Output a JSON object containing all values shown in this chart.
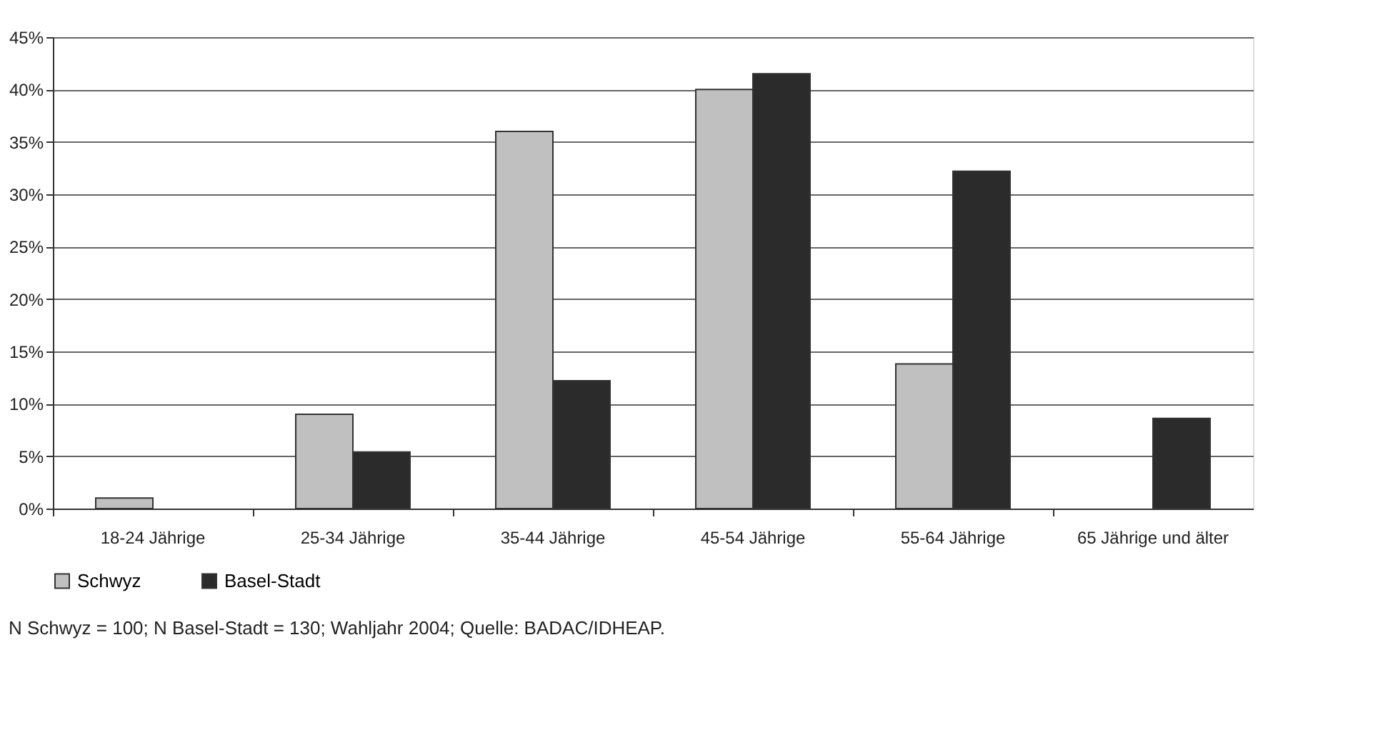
{
  "chart_data": {
    "type": "bar",
    "categories": [
      "18-24 Jährige",
      "25-34 Jährige",
      "35-44 Jährige",
      "45-54 Jährige",
      "55-64 Jährige",
      "65 Jährige und älter"
    ],
    "series": [
      {
        "name": "Schwyz",
        "color": "#c0c0c0",
        "values": [
          1,
          9,
          36,
          40,
          13.8,
          0
        ]
      },
      {
        "name": "Basel-Stadt",
        "color": "#2b2b2b",
        "values": [
          0,
          5.4,
          12.2,
          41.5,
          32.2,
          8.6
        ]
      }
    ],
    "ylim": [
      0,
      45
    ],
    "yticks": [
      {
        "value": 0,
        "label": "0%"
      },
      {
        "value": 5,
        "label": "5%"
      },
      {
        "value": 10,
        "label": "10%"
      },
      {
        "value": 15,
        "label": "15%"
      },
      {
        "value": 20,
        "label": "20%"
      },
      {
        "value": 25,
        "label": "25%"
      },
      {
        "value": 30,
        "label": "30%"
      },
      {
        "value": 35,
        "label": "35%"
      },
      {
        "value": 40,
        "label": "40%"
      },
      {
        "value": 45,
        "label": "45%"
      }
    ],
    "grid": "y",
    "legend": "bottom",
    "annotations": [
      "N Schwyz = 100; N Basel-Stadt = 130; Wahljahr 2004; Quelle: BADAC/IDHEAP."
    ]
  }
}
